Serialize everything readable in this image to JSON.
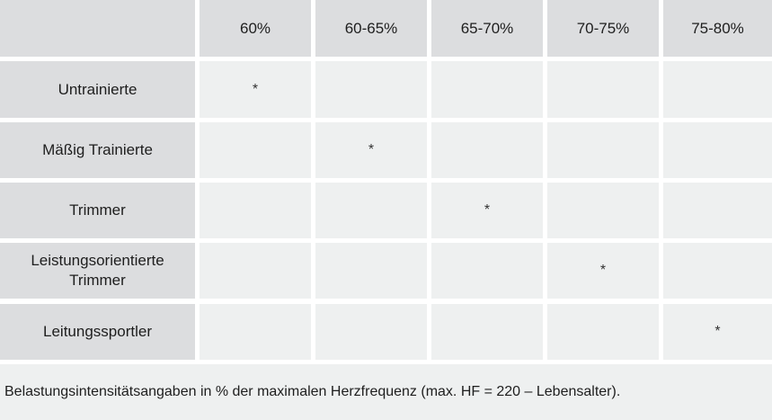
{
  "table": {
    "columns": [
      "60%",
      "60-65%",
      "65-70%",
      "70-75%",
      "75-80%"
    ],
    "rows": [
      {
        "label": "Untrainierte",
        "cells": [
          "*",
          "",
          "",
          "",
          ""
        ]
      },
      {
        "label": "Mäßig Trainierte",
        "cells": [
          "",
          "*",
          "",
          "",
          ""
        ]
      },
      {
        "label": "Trimmer",
        "cells": [
          "",
          "",
          "*",
          "",
          ""
        ]
      },
      {
        "label": "Leistungsorientierte\nTrimmer",
        "cells": [
          "",
          "",
          "",
          "*",
          ""
        ]
      },
      {
        "label": "Leitungssportler",
        "cells": [
          "",
          "",
          "",
          "",
          "*"
        ]
      }
    ]
  },
  "footnote": "Belastungsintensitätsangaben in % der maximalen Herzfrequenz (max. HF = 220 – Lebensalter)."
}
